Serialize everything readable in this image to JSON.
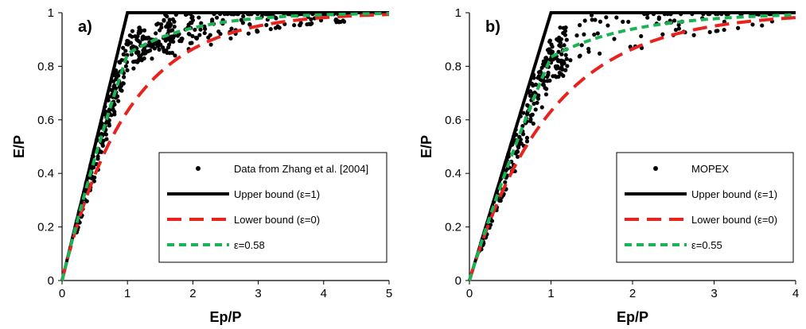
{
  "colors": {
    "data_points": "#000000",
    "upper_bound": "#000000",
    "lower_bound": "#e8221c",
    "fit": "#1cb355"
  },
  "chart_data": [
    {
      "type": "scatter",
      "panel_label": "a)",
      "xlabel": "Ep/P",
      "ylabel": "E/P",
      "xlim": [
        0,
        5
      ],
      "ylim": [
        0,
        1
      ],
      "x_ticks": [
        "0",
        "1",
        "2",
        "3",
        "4",
        "5"
      ],
      "y_ticks": [
        "0",
        "0.2",
        "0.4",
        "0.6",
        "0.8",
        "1"
      ],
      "legend_position": "bottom-right",
      "series": [
        {
          "name": "Data from Zhang et al. [2004]",
          "kind": "points",
          "n_points": 480
        },
        {
          "name": "Upper bound (ε=1)",
          "kind": "line",
          "epsilon": 1
        },
        {
          "name": "Lower bound (ε=0)",
          "kind": "line",
          "epsilon": 0
        },
        {
          "name": "ε=0.58",
          "kind": "line",
          "epsilon": 0.58
        }
      ]
    },
    {
      "type": "scatter",
      "panel_label": "b)",
      "xlabel": "Ep/P",
      "ylabel": "E/P",
      "xlim": [
        0,
        4
      ],
      "ylim": [
        0,
        1
      ],
      "x_ticks": [
        "0",
        "1",
        "2",
        "3",
        "4"
      ],
      "y_ticks": [
        "0",
        "0.2",
        "0.4",
        "0.6",
        "0.8",
        "1"
      ],
      "legend_position": "bottom-right",
      "series": [
        {
          "name": "MOPEX",
          "kind": "points",
          "n_points": 330
        },
        {
          "name": "Upper bound (ε=1)",
          "kind": "line",
          "epsilon": 1
        },
        {
          "name": "Lower bound (ε=0)",
          "kind": "line",
          "epsilon": 0
        },
        {
          "name": "ε=0.55",
          "kind": "line",
          "epsilon": 0.55
        }
      ]
    }
  ]
}
